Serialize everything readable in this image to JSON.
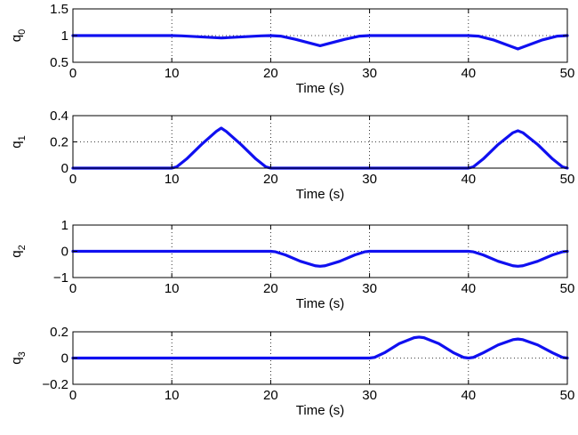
{
  "chart_data": [
    {
      "type": "line",
      "ylabel_base": "q",
      "ylabel_sub": "0",
      "xlabel": "Time (s)",
      "xlim": [
        0,
        50
      ],
      "ylim": [
        0.5,
        1.5
      ],
      "xticks": [
        0,
        10,
        20,
        30,
        40,
        50
      ],
      "yticks": [
        0.5,
        1,
        1.5
      ],
      "ytick_labels": [
        "0.5",
        "1",
        "1.5"
      ],
      "ygrid": [
        1
      ],
      "xgrid": [
        10,
        20,
        30,
        40
      ],
      "color": "#1010f0",
      "x": [
        0,
        10,
        11,
        12.5,
        15,
        17.5,
        19,
        20,
        21,
        22.5,
        25,
        27.5,
        29,
        30,
        40,
        41,
        42.5,
        45,
        47.5,
        49,
        50
      ],
      "y": [
        1,
        1,
        0.995,
        0.98,
        0.955,
        0.98,
        0.995,
        1,
        0.99,
        0.93,
        0.81,
        0.93,
        0.99,
        1,
        1,
        0.99,
        0.92,
        0.75,
        0.92,
        0.99,
        1
      ]
    },
    {
      "type": "line",
      "ylabel_base": "q",
      "ylabel_sub": "1",
      "xlabel": "Time (s)",
      "xlim": [
        0,
        50
      ],
      "ylim": [
        0,
        0.4
      ],
      "xticks": [
        0,
        10,
        20,
        30,
        40,
        50
      ],
      "yticks": [
        0,
        0.2,
        0.4
      ],
      "ytick_labels": [
        "0",
        "0.2",
        "0.4"
      ],
      "ygrid": [
        0.2
      ],
      "xgrid": [
        10,
        20,
        30,
        40
      ],
      "color": "#1010f0",
      "x": [
        0,
        10,
        10.5,
        11.5,
        13,
        14.5,
        15,
        15.5,
        17,
        18.5,
        19.5,
        20,
        40,
        40.5,
        41.5,
        43,
        44.5,
        45,
        45.5,
        47,
        48.5,
        49.5,
        50
      ],
      "y": [
        0,
        0,
        0.01,
        0.07,
        0.18,
        0.28,
        0.305,
        0.28,
        0.18,
        0.07,
        0.01,
        0,
        0,
        0.01,
        0.07,
        0.18,
        0.27,
        0.285,
        0.27,
        0.18,
        0.07,
        0.01,
        0
      ]
    },
    {
      "type": "line",
      "ylabel_base": "q",
      "ylabel_sub": "2",
      "xlabel": "Time (s)",
      "xlim": [
        0,
        50
      ],
      "ylim": [
        -1,
        1
      ],
      "xticks": [
        0,
        10,
        20,
        30,
        40,
        50
      ],
      "yticks": [
        -1,
        0,
        1
      ],
      "ytick_labels": [
        "−1",
        "0",
        "1"
      ],
      "ygrid": [
        0
      ],
      "xgrid": [
        10,
        20,
        30,
        40
      ],
      "color": "#1010f0",
      "x": [
        0,
        20,
        20.5,
        21.5,
        23,
        24.5,
        25,
        25.5,
        27,
        28.5,
        29.5,
        30,
        40,
        40.5,
        41.5,
        43,
        44.5,
        45,
        45.5,
        47,
        48.5,
        49.5,
        50
      ],
      "y": [
        0,
        0,
        -0.02,
        -0.14,
        -0.38,
        -0.55,
        -0.57,
        -0.55,
        -0.38,
        -0.14,
        -0.02,
        0,
        0,
        -0.02,
        -0.14,
        -0.38,
        -0.55,
        -0.57,
        -0.55,
        -0.38,
        -0.14,
        -0.02,
        0
      ]
    },
    {
      "type": "line",
      "ylabel_base": "q",
      "ylabel_sub": "3",
      "xlabel": "Time (s)",
      "xlim": [
        0,
        50
      ],
      "ylim": [
        -0.2,
        0.2
      ],
      "xticks": [
        0,
        10,
        20,
        30,
        40,
        50
      ],
      "yticks": [
        -0.2,
        0,
        0.2
      ],
      "ytick_labels": [
        "−0.2",
        "0",
        "0.2"
      ],
      "ygrid": [
        0
      ],
      "xgrid": [
        10,
        20,
        30,
        40
      ],
      "color": "#1010f0",
      "x": [
        0,
        30,
        30.5,
        31.5,
        33,
        34.5,
        35,
        35.5,
        37,
        38.5,
        39.5,
        40,
        40.5,
        41.5,
        43,
        44.5,
        45,
        45.5,
        47,
        48.5,
        49.5,
        50
      ],
      "y": [
        0,
        0,
        0.005,
        0.04,
        0.11,
        0.155,
        0.16,
        0.155,
        0.11,
        0.04,
        0.005,
        0,
        0.005,
        0.04,
        0.1,
        0.14,
        0.145,
        0.14,
        0.1,
        0.04,
        0.005,
        0
      ]
    }
  ]
}
